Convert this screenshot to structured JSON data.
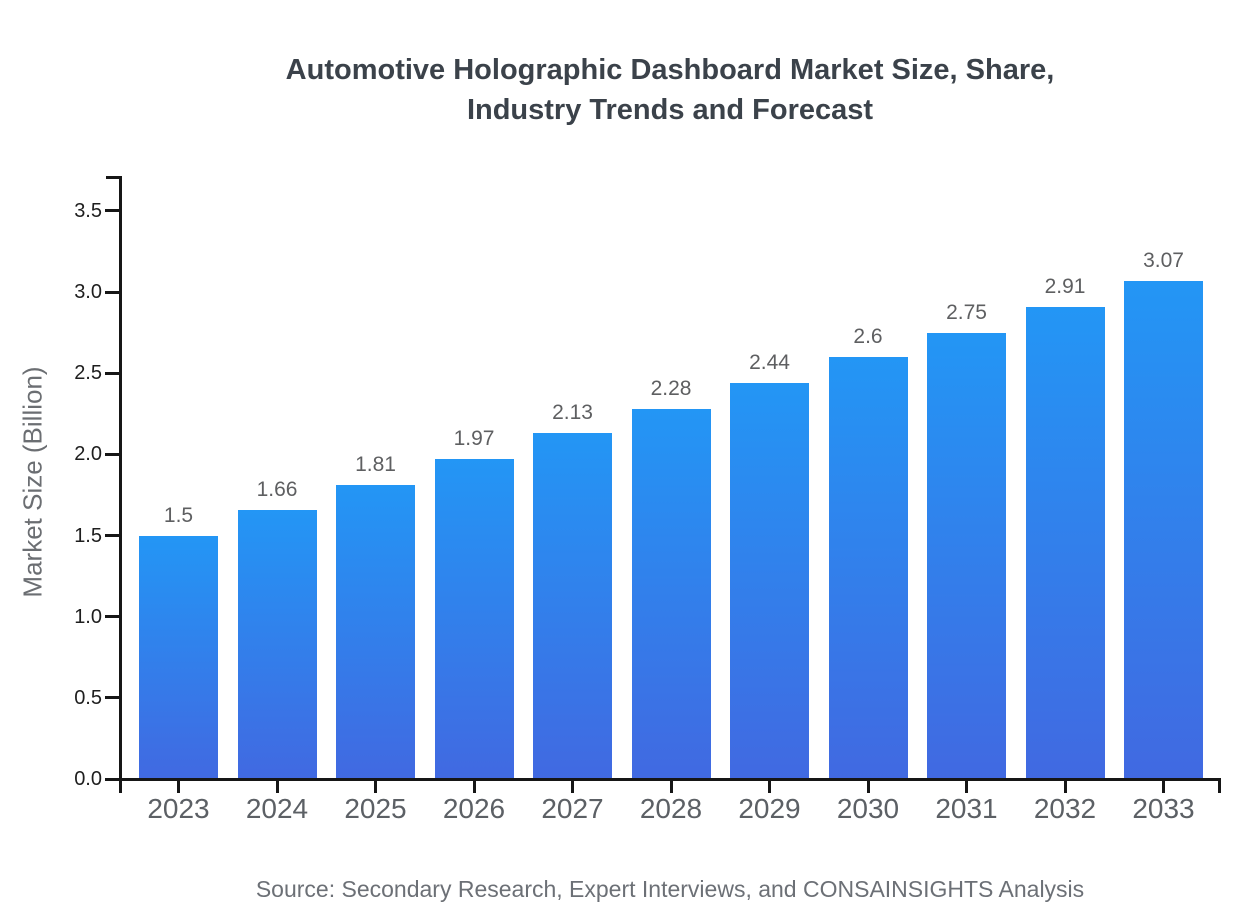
{
  "chart_data": {
    "type": "bar",
    "title_lines": [
      "Automotive Holographic Dashboard Market Size, Share,",
      "Industry Trends and Forecast"
    ],
    "title": "Automotive Holographic Dashboard Market Size, Share, Industry Trends and Forecast",
    "xlabel": "",
    "ylabel": "Market Size (Billion)",
    "categories": [
      "2023",
      "2024",
      "2025",
      "2026",
      "2027",
      "2028",
      "2029",
      "2030",
      "2031",
      "2032",
      "2033"
    ],
    "values": [
      1.5,
      1.66,
      1.81,
      1.97,
      2.13,
      2.28,
      2.44,
      2.6,
      2.75,
      2.91,
      3.07
    ],
    "value_labels": [
      "1.5",
      "1.66",
      "1.81",
      "1.97",
      "2.13",
      "2.28",
      "2.44",
      "2.6",
      "2.75",
      "2.91",
      "3.07"
    ],
    "ylim": [
      0,
      3.7
    ],
    "yticks": [
      0.0,
      0.5,
      1.0,
      1.5,
      2.0,
      2.5,
      3.0,
      3.5
    ],
    "ytick_labels": [
      "0.0",
      "0.5",
      "1.0",
      "1.5",
      "2.0",
      "2.5",
      "3.0",
      "3.5"
    ],
    "grid": false,
    "legend": false,
    "source": "Source: Secondary Research, Expert Interviews, and CONSAINSIGHTS Analysis",
    "colors": {
      "bar_gradient_top": "#2396F5",
      "bar_gradient_bottom": "#4169E1",
      "axis": "#161616",
      "title_text": "#3b424a",
      "tick_label_text": "#1e1e1e",
      "category_label_text": "#5c6065",
      "value_label_text": "#5e5f61",
      "axis_title_text": "#6b6e72",
      "source_text": "#6c7076",
      "background": "#ffffff"
    }
  }
}
